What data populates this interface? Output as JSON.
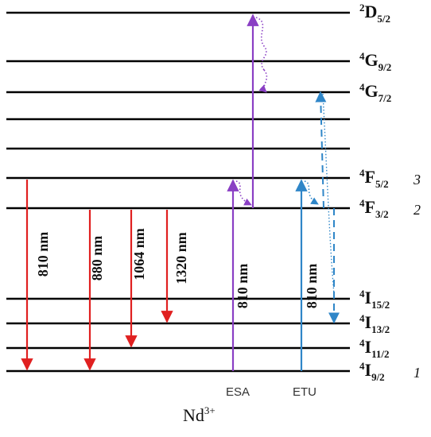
{
  "ion": {
    "base": "Nd",
    "sup": "3+"
  },
  "levels": [
    {
      "id": "2D52",
      "sup": "2",
      "main": "D",
      "sub": "5/2",
      "num": ""
    },
    {
      "id": "4G92",
      "sup": "4",
      "main": "G",
      "sub": "9/2",
      "num": ""
    },
    {
      "id": "4G72",
      "sup": "4",
      "main": "G",
      "sub": "7/2",
      "num": ""
    },
    {
      "id": "u1",
      "sup": "",
      "main": "",
      "sub": "",
      "num": ""
    },
    {
      "id": "u2",
      "sup": "",
      "main": "",
      "sub": "",
      "num": ""
    },
    {
      "id": "4F52",
      "sup": "4",
      "main": "F",
      "sub": "5/2",
      "num": "3"
    },
    {
      "id": "4F32",
      "sup": "4",
      "main": "F",
      "sub": "3/2",
      "num": "2"
    },
    {
      "id": "4I152",
      "sup": "4",
      "main": "I",
      "sub": "15/2",
      "num": ""
    },
    {
      "id": "4I132",
      "sup": "4",
      "main": "I",
      "sub": "13/2",
      "num": ""
    },
    {
      "id": "4I112",
      "sup": "4",
      "main": "I",
      "sub": "11/2",
      "num": ""
    },
    {
      "id": "4I92",
      "sup": "4",
      "main": "I",
      "sub": "9/2",
      "num": "1"
    }
  ],
  "emissions": [
    {
      "label": "810 nm",
      "from": "4F52",
      "to": "4I92",
      "color": "#e02020"
    },
    {
      "label": "880 nm",
      "from": "4F32",
      "to": "4I92",
      "color": "#e02020"
    },
    {
      "label": "1064 nm",
      "from": "4F32",
      "to": "4I112",
      "color": "#e02020"
    },
    {
      "label": "1320 nm",
      "from": "4F32",
      "to": "4I132",
      "color": "#e02020"
    }
  ],
  "processes": [
    {
      "caption": "ESA",
      "pump_label": "810 nm",
      "color": "#8a3fc4"
    },
    {
      "caption": "ETU",
      "pump_label": "810 nm",
      "color": "#2f86c8"
    }
  ]
}
